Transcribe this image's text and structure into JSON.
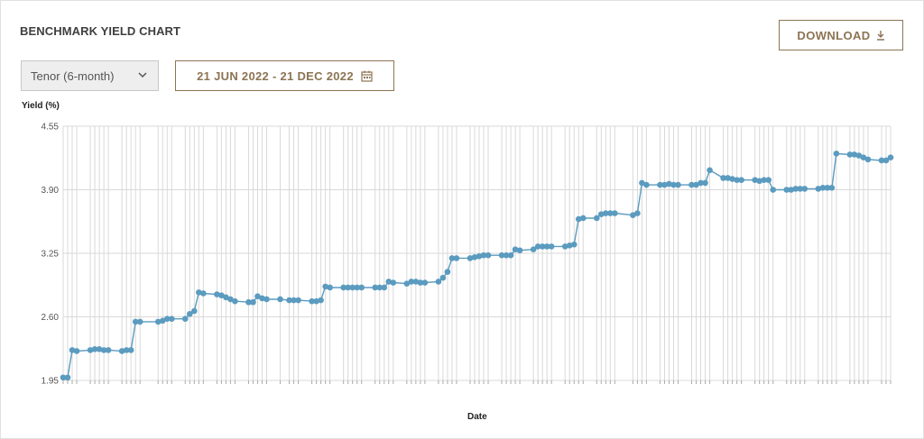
{
  "header": {
    "title": "BENCHMARK YIELD CHART",
    "download_label": "DOWNLOAD"
  },
  "filters": {
    "tenor_value": "Tenor (6-month)",
    "date_range": "21 JUN 2022 - 21 DEC 2022"
  },
  "icons": {
    "download": "download-icon",
    "dropdown": "chevron-down-icon",
    "calendar": "calendar-icon"
  },
  "colors": {
    "accent": "#8c7453",
    "series": "#5b9bbf",
    "grid": "#d9d9d9"
  },
  "chart_data": {
    "type": "line",
    "ylabel": "Yield (%)",
    "xlabel": "Date",
    "ylim": [
      1.95,
      4.55
    ],
    "yticks": [
      "4.55",
      "3.90",
      "3.25",
      "2.60",
      "1.95"
    ],
    "grid": true,
    "x": [
      "2022-06-21",
      "2022-06-22",
      "2022-06-23",
      "2022-06-24",
      "2022-06-27",
      "2022-06-28",
      "2022-06-29",
      "2022-06-30",
      "2022-07-01",
      "2022-07-04",
      "2022-07-05",
      "2022-07-06",
      "2022-07-07",
      "2022-07-08",
      "2022-07-12",
      "2022-07-13",
      "2022-07-14",
      "2022-07-15",
      "2022-07-18",
      "2022-07-19",
      "2022-07-20",
      "2022-07-21",
      "2022-07-22",
      "2022-07-25",
      "2022-07-26",
      "2022-07-27",
      "2022-07-28",
      "2022-07-29",
      "2022-08-01",
      "2022-08-02",
      "2022-08-03",
      "2022-08-04",
      "2022-08-05",
      "2022-08-08",
      "2022-08-10",
      "2022-08-11",
      "2022-08-12",
      "2022-08-15",
      "2022-08-16",
      "2022-08-17",
      "2022-08-18",
      "2022-08-19",
      "2022-08-22",
      "2022-08-23",
      "2022-08-24",
      "2022-08-25",
      "2022-08-26",
      "2022-08-29",
      "2022-08-30",
      "2022-08-31",
      "2022-09-01",
      "2022-09-02",
      "2022-09-05",
      "2022-09-06",
      "2022-09-07",
      "2022-09-08",
      "2022-09-09",
      "2022-09-12",
      "2022-09-13",
      "2022-09-14",
      "2022-09-15",
      "2022-09-16",
      "2022-09-19",
      "2022-09-20",
      "2022-09-21",
      "2022-09-22",
      "2022-09-23",
      "2022-09-26",
      "2022-09-27",
      "2022-09-28",
      "2022-09-29",
      "2022-09-30",
      "2022-10-03",
      "2022-10-04",
      "2022-10-05",
      "2022-10-06",
      "2022-10-07",
      "2022-10-10",
      "2022-10-11",
      "2022-10-12",
      "2022-10-13",
      "2022-10-14",
      "2022-10-17",
      "2022-10-18",
      "2022-10-19",
      "2022-10-20",
      "2022-10-21",
      "2022-10-25",
      "2022-10-26",
      "2022-10-27",
      "2022-10-28",
      "2022-10-31",
      "2022-11-01",
      "2022-11-02",
      "2022-11-03",
      "2022-11-04",
      "2022-11-07",
      "2022-11-08",
      "2022-11-09",
      "2022-11-10",
      "2022-11-11",
      "2022-11-14",
      "2022-11-15",
      "2022-11-16",
      "2022-11-17",
      "2022-11-18",
      "2022-11-21",
      "2022-11-22",
      "2022-11-23",
      "2022-11-24",
      "2022-11-25",
      "2022-11-28",
      "2022-11-29",
      "2022-11-30",
      "2022-12-01",
      "2022-12-02",
      "2022-12-05",
      "2022-12-06",
      "2022-12-07",
      "2022-12-08",
      "2022-12-09",
      "2022-12-12",
      "2022-12-13",
      "2022-12-14",
      "2022-12-15",
      "2022-12-16",
      "2022-12-19",
      "2022-12-20",
      "2022-12-21"
    ],
    "series": [
      {
        "values": [
          1.98,
          1.98,
          2.26,
          2.25,
          2.26,
          2.27,
          2.27,
          2.26,
          2.26,
          2.25,
          2.26,
          2.26,
          2.55,
          2.55,
          2.55,
          2.56,
          2.58,
          2.58,
          2.58,
          2.63,
          2.66,
          2.85,
          2.84,
          2.83,
          2.82,
          2.8,
          2.78,
          2.76,
          2.75,
          2.75,
          2.81,
          2.79,
          2.78,
          2.78,
          2.77,
          2.77,
          2.77,
          2.76,
          2.76,
          2.77,
          2.91,
          2.9,
          2.9,
          2.9,
          2.9,
          2.9,
          2.9,
          2.9,
          2.9,
          2.9,
          2.96,
          2.95,
          2.94,
          2.96,
          2.96,
          2.95,
          2.95,
          2.96,
          3.0,
          3.06,
          3.2,
          3.2,
          3.2,
          3.21,
          3.22,
          3.23,
          3.23,
          3.23,
          3.23,
          3.23,
          3.29,
          3.28,
          3.29,
          3.32,
          3.32,
          3.32,
          3.32,
          3.32,
          3.33,
          3.34,
          3.6,
          3.61,
          3.61,
          3.65,
          3.66,
          3.66,
          3.66,
          3.64,
          3.66,
          3.97,
          3.95,
          3.95,
          3.95,
          3.96,
          3.95,
          3.95,
          3.95,
          3.95,
          3.97,
          3.97,
          4.1,
          4.02,
          4.02,
          4.01,
          4.0,
          4.0,
          4.0,
          3.99,
          4.0,
          4.0,
          3.9,
          3.9,
          3.9,
          3.91,
          3.91,
          3.91,
          3.91,
          3.92,
          3.92,
          3.92,
          4.27,
          4.26,
          4.26,
          4.25,
          4.23,
          4.21,
          4.2,
          4.2,
          4.23
        ]
      }
    ]
  }
}
